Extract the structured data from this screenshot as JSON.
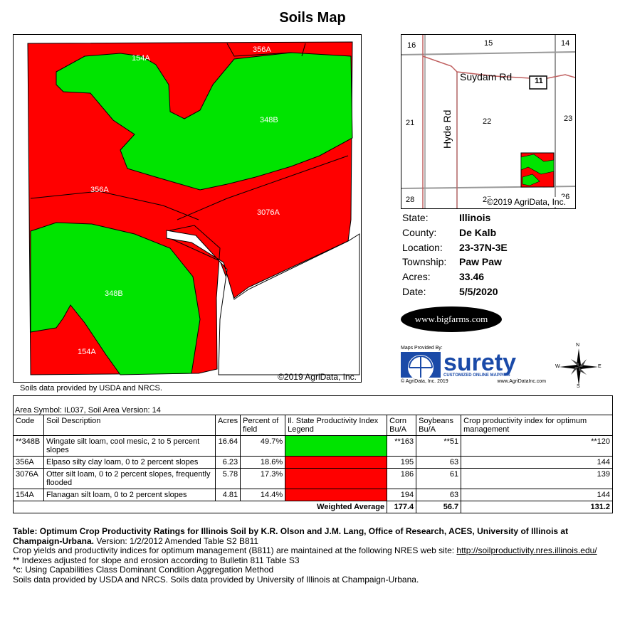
{
  "page_title": "Soils Map",
  "main_map": {
    "labels": [
      "154A",
      "356A",
      "348B",
      "356A",
      "3076A",
      "348B",
      "154A"
    ],
    "copyright": "©2019 AgriData, Inc."
  },
  "soils_credit": "Soils data provided by USDA and NRCS.",
  "location_map": {
    "sections": [
      "16",
      "15",
      "14",
      "21",
      "22",
      "23",
      "28",
      "27",
      "26"
    ],
    "roads": [
      "Suydam Rd",
      "Hyde Rd"
    ],
    "route_number": "11",
    "copyright": "©2019 AgriData, Inc."
  },
  "info": [
    {
      "label": "State:",
      "value": "Illinois"
    },
    {
      "label": "County:",
      "value": "De Kalb"
    },
    {
      "label": "Location:",
      "value": "23-37N-3E"
    },
    {
      "label": "Township:",
      "value": "Paw Paw"
    },
    {
      "label": "Acres:",
      "value": "33.46"
    },
    {
      "label": "Date:",
      "value": "5/5/2020"
    }
  ],
  "logos": {
    "bigfarms": "www.bigfarms.com",
    "surety_provided": "Maps Provided By:",
    "surety_name": "surety",
    "surety_tag": "CUSTOMIZED ONLINE MAPPING",
    "surety_copy": "© AgriData, Inc. 2019",
    "surety_url": "www.AgriDataInc.com",
    "compass": [
      "N",
      "E",
      "S",
      "W"
    ]
  },
  "table": {
    "area_symbol": "Area Symbol: IL037, Soil Area Version: 14",
    "headers": [
      "Code",
      "Soil Description",
      "Acres",
      "Percent of field",
      "Il. State Productivity Index Legend",
      "Corn Bu/A",
      "Soybeans Bu/A",
      "Crop productivity index for optimum management"
    ],
    "rows": [
      {
        "code": "**348B",
        "desc": "Wingate silt loam, cool mesic, 2 to 5 percent slopes",
        "acres": "16.64",
        "pct": "49.7%",
        "color": "#00e400",
        "corn": "**163",
        "soy": "**51",
        "cpi": "**120"
      },
      {
        "code": "356A",
        "desc": "Elpaso silty clay loam, 0 to 2 percent slopes",
        "acres": "6.23",
        "pct": "18.6%",
        "color": "#ff0000",
        "corn": "195",
        "soy": "63",
        "cpi": "144"
      },
      {
        "code": "3076A",
        "desc": "Otter silt loam, 0 to 2 percent slopes, frequently flooded",
        "acres": "5.78",
        "pct": "17.3%",
        "color": "#ff0000",
        "corn": "186",
        "soy": "61",
        "cpi": "139"
      },
      {
        "code": "154A",
        "desc": "Flanagan silt loam, 0 to 2 percent slopes",
        "acres": "4.81",
        "pct": "14.4%",
        "color": "#ff0000",
        "corn": "194",
        "soy": "63",
        "cpi": "144"
      }
    ],
    "weighted": {
      "label": "Weighted Average",
      "corn": "177.4",
      "soy": "56.7",
      "cpi": "131.2"
    }
  },
  "notes": {
    "line1_bold": "Table: Optimum Crop Productivity Ratings for Illinois Soil by K.R. Olson and J.M. Lang, Office of Research, ACES, University of Illinois at Champaign-Urbana.",
    "line1_rest": " Version: 1/2/2012 Amended Table S2 B811",
    "line2": "Crop yields and productivity indices for optimum management (B811) are maintained at the following NRES web site: ",
    "line2_link": "http://soilproductivity.nres.illinois.edu/",
    "line3": "** Indexes adjusted for slope and erosion according to Bulletin 811 Table S3",
    "line4": "*c: Using Capabilities Class Dominant Condition Aggregation Method",
    "line5": "Soils data provided by USDA and NRCS. Soils data provided by University of Illinois at Champaign-Urbana."
  }
}
